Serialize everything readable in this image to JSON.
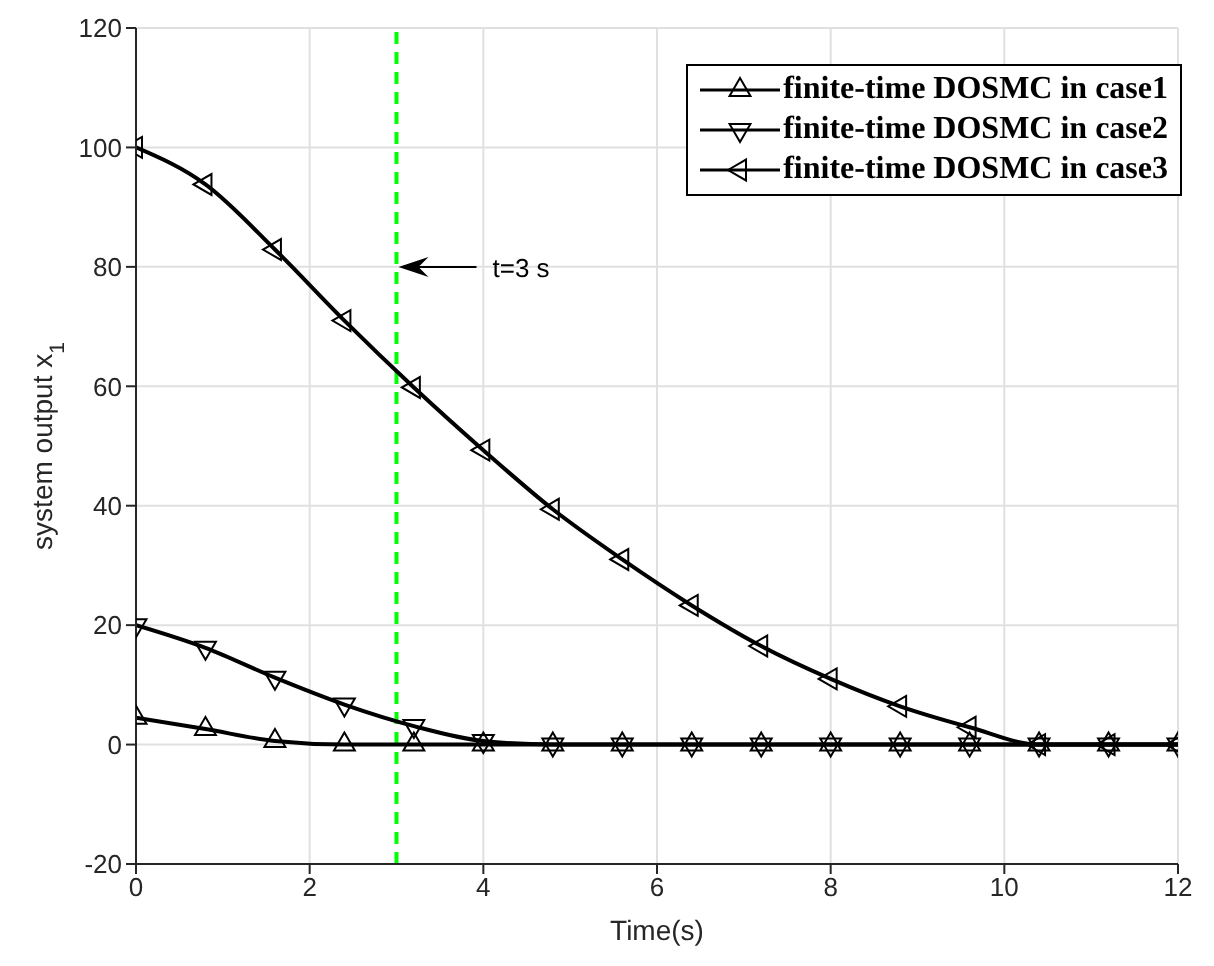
{
  "chart_data": {
    "type": "line",
    "xlabel": "Time(s)",
    "ylabel": "system output x$_{1}$",
    "x": [
      0,
      0.8,
      1.6,
      2.4,
      3.2,
      4.0,
      4.8,
      5.6,
      6.4,
      7.2,
      8.0,
      8.8,
      9.6,
      10.4,
      11.2,
      12.0
    ],
    "series": [
      {
        "name": "finite-time DOSMC in case1",
        "color": "#000000",
        "values": [
          4.5,
          2.6,
          0.6,
          0,
          0,
          0,
          0,
          0,
          0,
          0,
          0,
          0,
          0,
          0,
          0,
          0
        ]
      },
      {
        "name": "finite-time DOSMC in case2",
        "color": "#000000",
        "values": [
          20,
          16.2,
          11.2,
          6.7,
          3.1,
          0.6,
          0,
          0,
          0,
          0,
          0,
          0,
          0,
          0,
          0,
          0
        ]
      },
      {
        "name": "finite-time DOSMC in case3",
        "color": "#000000",
        "values": [
          100,
          93.8,
          82.9,
          71,
          59.8,
          49.3,
          39.4,
          31,
          23.3,
          16.5,
          11,
          6.4,
          2.9,
          0,
          0,
          0
        ]
      }
    ],
    "xlim": [
      0,
      12
    ],
    "xticks": [
      0,
      2,
      4,
      6,
      8,
      10,
      12
    ],
    "ylim": [
      -20,
      120
    ],
    "yticks": [
      -20,
      0,
      20,
      40,
      60,
      80,
      100,
      120
    ],
    "ref_lines": [
      {
        "axis": "x",
        "value": 3,
        "color": "#00ff00",
        "line_style": "dashed"
      }
    ],
    "annotations": [
      "t=3 s"
    ],
    "grid": true,
    "legend": "top right",
    "marker": "triangle",
    "line_style": "solid"
  }
}
